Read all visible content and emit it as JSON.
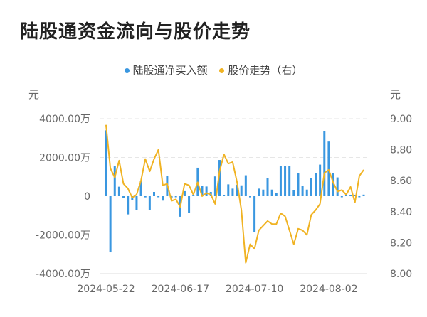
{
  "title": "陆股通资金流向与股价走势",
  "colors": {
    "bar": "#3a97e0",
    "line": "#f0b323"
  },
  "chart_data": {
    "type": "bar+line",
    "title": "陆股通资金流向与股价走势",
    "legend_position": "top",
    "grid": true,
    "left_axis": {
      "unit": "元",
      "ylim": [
        -4000,
        4000
      ],
      "ticks": [
        4000,
        2000,
        0,
        -2000,
        -4000
      ],
      "tick_labels": [
        "4000.00万",
        "2000.00万",
        "0",
        "-2000.00万",
        "-4000.00万"
      ]
    },
    "right_axis": {
      "unit": "元",
      "ylim": [
        8.0,
        9.0
      ],
      "ticks": [
        9.0,
        8.8,
        8.6,
        8.4,
        8.2,
        8.0
      ],
      "tick_labels": [
        "9.00",
        "8.80",
        "8.60",
        "8.40",
        "8.20",
        "8.00"
      ]
    },
    "x_tick_labels": [
      "2024-05-22",
      "2024-06-17",
      "2024-07-10",
      "2024-08-02"
    ],
    "x": [
      "2024-05-22",
      "2024-05-23",
      "2024-05-24",
      "2024-05-27",
      "2024-05-28",
      "2024-05-29",
      "2024-05-30",
      "2024-05-31",
      "2024-06-03",
      "2024-06-04",
      "2024-06-05",
      "2024-06-06",
      "2024-06-07",
      "2024-06-11",
      "2024-06-12",
      "2024-06-13",
      "2024-06-14",
      "2024-06-17",
      "2024-06-18",
      "2024-06-19",
      "2024-06-20",
      "2024-06-21",
      "2024-06-24",
      "2024-06-25",
      "2024-06-26",
      "2024-06-27",
      "2024-06-28",
      "2024-07-01",
      "2024-07-02",
      "2024-07-03",
      "2024-07-04",
      "2024-07-05",
      "2024-07-08",
      "2024-07-09",
      "2024-07-10",
      "2024-07-11",
      "2024-07-12",
      "2024-07-15",
      "2024-07-16",
      "2024-07-17",
      "2024-07-18",
      "2024-07-19",
      "2024-07-22",
      "2024-07-23",
      "2024-07-24",
      "2024-07-25",
      "2024-07-26",
      "2024-07-29",
      "2024-07-30",
      "2024-07-31",
      "2024-08-01",
      "2024-08-02",
      "2024-08-05",
      "2024-08-06",
      "2024-08-07",
      "2024-08-08",
      "2024-08-09",
      "2024-08-12",
      "2024-08-13",
      "2024-08-14"
    ],
    "series": [
      {
        "name": "陆股通净买入额",
        "type": "bar",
        "axis": "left",
        "unit": "万元",
        "values": [
          3400,
          -2900,
          1570,
          490,
          -80,
          -940,
          -200,
          -700,
          770,
          -60,
          -700,
          220,
          -30,
          -230,
          1050,
          -80,
          -30,
          -1060,
          260,
          -860,
          0,
          1470,
          550,
          500,
          220,
          1020,
          1870,
          0,
          610,
          390,
          590,
          560,
          1080,
          -60,
          -1860,
          390,
          340,
          950,
          340,
          180,
          1570,
          1570,
          1570,
          310,
          1200,
          550,
          340,
          950,
          1200,
          1630,
          3360,
          2820,
          1200,
          970,
          -30,
          30,
          60,
          0,
          -20,
          80
        ]
      },
      {
        "name": "股价走势（右）",
        "type": "line",
        "axis": "right",
        "unit": "元",
        "values": [
          8.96,
          8.68,
          8.62,
          8.73,
          8.58,
          8.55,
          8.49,
          8.51,
          8.6,
          8.74,
          8.66,
          8.74,
          8.8,
          8.57,
          8.58,
          8.47,
          8.48,
          8.43,
          8.58,
          8.57,
          8.51,
          8.59,
          8.5,
          8.52,
          8.51,
          8.45,
          8.66,
          8.77,
          8.71,
          8.72,
          8.59,
          8.41,
          8.07,
          8.19,
          8.16,
          8.28,
          8.31,
          8.34,
          8.32,
          8.32,
          8.39,
          8.37,
          8.28,
          8.19,
          8.29,
          8.28,
          8.25,
          8.38,
          8.41,
          8.45,
          8.65,
          8.67,
          8.59,
          8.53,
          8.54,
          8.51,
          8.56,
          8.46,
          8.63,
          8.67
        ]
      }
    ]
  }
}
